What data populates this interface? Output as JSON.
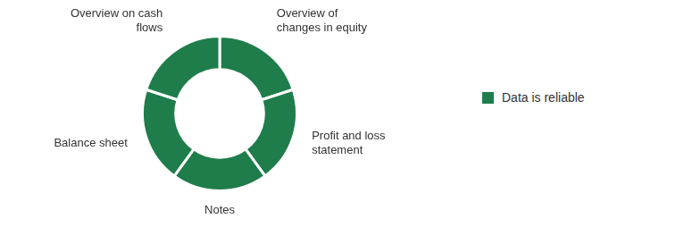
{
  "chart_data": {
    "type": "doughnut",
    "categories": [
      "Overview of changes in equity",
      "Profit and loss statement",
      "Notes",
      "Balance sheet",
      "Overview on cash flows"
    ],
    "series": [
      {
        "name": "Data is reliable",
        "color": "#1e7d4a",
        "values": [
          20,
          20,
          20,
          20,
          20
        ]
      }
    ],
    "legend": "right"
  }
}
